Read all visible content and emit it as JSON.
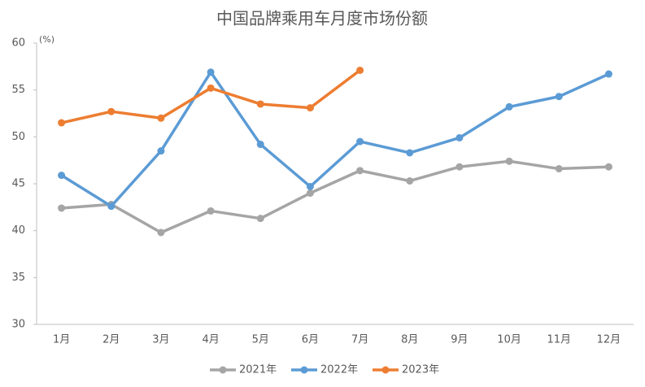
{
  "chart_data": {
    "type": "line",
    "title": "中国品牌乘用车月度市场份额",
    "y_unit": "(%)",
    "categories": [
      "1月",
      "2月",
      "3月",
      "4月",
      "5月",
      "6月",
      "7月",
      "8月",
      "9月",
      "10月",
      "11月",
      "12月"
    ],
    "series": [
      {
        "name": "2021年",
        "color": "#a5a5a5",
        "values": [
          42.4,
          42.8,
          39.8,
          42.1,
          41.3,
          44.0,
          46.4,
          45.3,
          46.8,
          47.4,
          46.6,
          46.8
        ]
      },
      {
        "name": "2022年",
        "color": "#5b9bd5",
        "values": [
          45.9,
          42.6,
          48.5,
          56.9,
          49.2,
          44.7,
          49.5,
          48.3,
          49.9,
          53.2,
          54.3,
          56.7
        ]
      },
      {
        "name": "2023年",
        "color": "#ed7d31",
        "values": [
          51.5,
          52.7,
          52.0,
          55.2,
          53.5,
          53.1,
          57.1,
          null,
          null,
          null,
          null,
          null
        ]
      }
    ],
    "ylim": [
      30,
      60
    ],
    "yticks": [
      30,
      35,
      40,
      45,
      50,
      55,
      60
    ],
    "grid": false,
    "legend": "bottom"
  }
}
